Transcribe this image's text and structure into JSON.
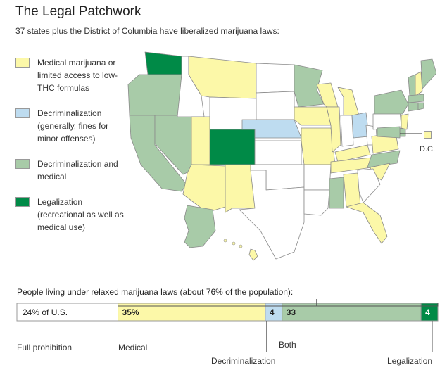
{
  "title": "The Legal Patchwork",
  "subtitle": "37 states plus the District of Columbia have liberalized marijuana laws:",
  "legend": [
    {
      "key": "medical",
      "label": "Medical marijuana or limited access to low-THC formulas",
      "color": "#fcf8a8"
    },
    {
      "key": "decrim",
      "label": "Decriminalization (generally, fines for minor offenses)",
      "color": "#bedcf0"
    },
    {
      "key": "decrim_medical",
      "label": "Decriminalization and medical",
      "color": "#a8cba8"
    },
    {
      "key": "legal",
      "label": "Legalization (recreational as well as medical use)",
      "color": "#008a47"
    }
  ],
  "colors": {
    "none": "#ffffff",
    "medical": "#fcf8a8",
    "decrim": "#bedcf0",
    "decrim_medical": "#a8cba8",
    "legal": "#008a47",
    "border": "#8a8a8a"
  },
  "map": {
    "dc_label": "D.C.",
    "states": {
      "WA": "legal",
      "OR": "decrim_medical",
      "CA": "decrim_medical",
      "NV": "decrim_medical",
      "ID": "none",
      "MT": "medical",
      "WY": "none",
      "UT": "medical",
      "AZ": "medical",
      "CO": "legal",
      "NM": "medical",
      "ND": "none",
      "SD": "none",
      "NE": "decrim",
      "KS": "none",
      "OK": "none",
      "TX": "none",
      "MN": "decrim_medical",
      "IA": "medical",
      "MO": "medical",
      "AR": "none",
      "LA": "none",
      "WI": "medical",
      "IL": "medical",
      "MS": "decrim_medical",
      "MI": "medical",
      "IN": "none",
      "KY": "medical",
      "TN": "medical",
      "AL": "medical",
      "OH": "decrim",
      "WV": "none",
      "VA": "medical",
      "NC": "decrim_medical",
      "SC": "medical",
      "GA": "none",
      "FL": "medical",
      "PA": "none",
      "NY": "decrim_medical",
      "VT": "decrim_medical",
      "NH": "medical",
      "ME": "decrim_medical",
      "MA": "decrim_medical",
      "CT": "decrim_medical",
      "RI": "decrim_medical",
      "NJ": "medical",
      "DE": "decrim_medical",
      "MD": "decrim_medical",
      "AK": "decrim_medical",
      "HI": "medical",
      "DC": "medical"
    }
  },
  "population": {
    "heading": "People living under relaxed marijuana laws (about 76% of the population):",
    "segments": [
      {
        "key": "none",
        "value": 24,
        "label": "24% of U.S.",
        "color": "#ffffff"
      },
      {
        "key": "medical",
        "value": 35,
        "label": "35%",
        "color": "#fcf8a8"
      },
      {
        "key": "decrim",
        "value": 4,
        "label": "4",
        "color": "#bedcf0"
      },
      {
        "key": "both",
        "value": 33,
        "label": "33",
        "color": "#a8cba8"
      },
      {
        "key": "legal",
        "value": 4,
        "label": "4",
        "color": "#008a47"
      }
    ],
    "axis_labels": {
      "none": "Full prohibition",
      "medical": "Medical",
      "decrim": "Decriminalization",
      "both": "Both",
      "legal": "Legalization"
    }
  }
}
